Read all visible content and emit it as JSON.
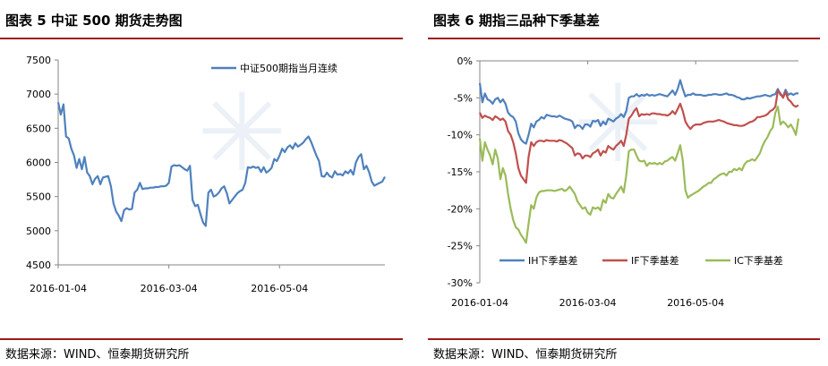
{
  "left": {
    "title": "图表 5 中证 500 期货走势图",
    "source": "数据来源：WIND、恒泰期货研究所"
  },
  "right": {
    "title": "图表 6 期指三品种下季基差",
    "source": "数据来源：WIND、恒泰期货研究所"
  },
  "colors": {
    "blue": "#4f81bd",
    "red": "#c0504d",
    "green": "#9bbb59",
    "rule": "#9e1b1b",
    "axis": "#868686"
  },
  "chart_data": [
    {
      "type": "line",
      "title": "",
      "ylim": [
        4500,
        7500
      ],
      "yticks": [
        "7500",
        "7000",
        "6500",
        "6000",
        "5500",
        "5000",
        "4500"
      ],
      "ytick_values": [
        7500,
        7000,
        6500,
        6000,
        5500,
        5000,
        4500
      ],
      "xticks": [
        "2016-01-04",
        "2016-03-04",
        "2016-05-04"
      ],
      "xtick_positions": [
        0,
        42,
        84
      ],
      "x_count": 125,
      "legend": "top-right",
      "series": [
        {
          "name": "中证500期指当月连续",
          "color": "#4f81bd",
          "values": [
            6880,
            6700,
            6850,
            6380,
            6350,
            6200,
            6100,
            5920,
            6050,
            5900,
            6080,
            5850,
            5800,
            5680,
            5760,
            5800,
            5680,
            5780,
            5790,
            5800,
            5650,
            5400,
            5280,
            5220,
            5140,
            5300,
            5330,
            5310,
            5320,
            5560,
            5600,
            5700,
            5610,
            5620,
            5620,
            5630,
            5630,
            5640,
            5640,
            5650,
            5650,
            5660,
            5700,
            5940,
            5960,
            5950,
            5960,
            5930,
            5900,
            5880,
            5950,
            5450,
            5360,
            5380,
            5240,
            5120,
            5070,
            5560,
            5600,
            5500,
            5520,
            5560,
            5620,
            5650,
            5550,
            5400,
            5450,
            5500,
            5550,
            5580,
            5600,
            5700,
            5930,
            5920,
            5940,
            5920,
            5930,
            5860,
            5930,
            5850,
            5880,
            5920,
            6050,
            6020,
            6100,
            6200,
            6150,
            6220,
            6250,
            6200,
            6280,
            6230,
            6260,
            6290,
            6340,
            6380,
            6300,
            6200,
            6100,
            6020,
            5800,
            5790,
            5850,
            5800,
            5780,
            5870,
            5820,
            5830,
            5810,
            5870,
            5840,
            5890,
            5820,
            6000,
            6080,
            6120,
            5900,
            5950,
            5860,
            5720,
            5660,
            5680,
            5700,
            5720,
            5790
          ]
        }
      ]
    },
    {
      "type": "line",
      "title": "",
      "ylim": [
        -30,
        0
      ],
      "yticks": [
        "0%",
        "-5%",
        "-10%",
        "-15%",
        "-20%",
        "-25%",
        "-30%"
      ],
      "ytick_values": [
        0,
        -5,
        -10,
        -15,
        -20,
        -25,
        -30
      ],
      "xticks": [
        "2016-01-04",
        "2016-03-04",
        "2016-05-04"
      ],
      "xtick_positions": [
        0,
        42,
        84
      ],
      "x_count": 125,
      "legend": "bottom",
      "series": [
        {
          "name": "IH下季基差",
          "color": "#4f81bd",
          "values": [
            -3,
            -5.6,
            -4.4,
            -5.2,
            -5.4,
            -5.8,
            -5.2,
            -5.0,
            -5.6,
            -5.2,
            -5.8,
            -7.0,
            -7.4,
            -7.6,
            -8.2,
            -9.8,
            -10.6,
            -11.0,
            -11.2,
            -10.0,
            -8.5,
            -9.0,
            -8.2,
            -8.0,
            -7.6,
            -7.8,
            -7.3,
            -7.4,
            -7.5,
            -7.5,
            -7.6,
            -7.4,
            -7.6,
            -7.8,
            -7.9,
            -8.0,
            -8.2,
            -9.1,
            -8.7,
            -8.8,
            -9.2,
            -8.6,
            -8.6,
            -8.9,
            -8.1,
            -8.2,
            -8.0,
            -8.8,
            -8.2,
            -8.6,
            -7.8,
            -8.0,
            -8.2,
            -7.8,
            -7.6,
            -7.2,
            -7.6,
            -6.8,
            -5.0,
            -4.8,
            -4.8,
            -4.5,
            -4.8,
            -4.6,
            -4.7,
            -4.5,
            -4.7,
            -4.6,
            -4.7,
            -4.6,
            -4.5,
            -4.6,
            -4.7,
            -4.8,
            -4.4,
            -4.0,
            -4.6,
            -3.8,
            -2.6,
            -3.8,
            -4.8,
            -4.6,
            -4.6,
            -4.4,
            -4.6,
            -4.6,
            -4.6,
            -4.7,
            -4.7,
            -4.6,
            -4.6,
            -4.5,
            -4.5,
            -4.6,
            -4.6,
            -4.5,
            -4.4,
            -4.6,
            -4.6,
            -4.7,
            -4.9,
            -5.0,
            -5.2,
            -5.2,
            -5.0,
            -5.1,
            -5.0,
            -4.9,
            -4.8,
            -4.8,
            -4.7,
            -4.6,
            -4.7,
            -4.8,
            -4.6,
            -4.5,
            -3.8,
            -4.6,
            -4.8,
            -3.9,
            -4.6,
            -4.4,
            -4.6,
            -4.4,
            -4.4
          ]
        },
        {
          "name": "IF下季基差",
          "color": "#c0504d",
          "values": [
            -7,
            -7.7,
            -7.4,
            -7.6,
            -7.7,
            -8.0,
            -7.5,
            -7.7,
            -8.0,
            -7.8,
            -8.2,
            -9.5,
            -10.0,
            -11.0,
            -12.5,
            -14.5,
            -15.5,
            -16.0,
            -16.5,
            -13.0,
            -11.0,
            -11.5,
            -11.0,
            -10.8,
            -10.8,
            -10.9,
            -10.7,
            -10.8,
            -10.8,
            -10.8,
            -10.9,
            -10.7,
            -10.8,
            -11.0,
            -11.2,
            -11.5,
            -11.8,
            -12.8,
            -12.5,
            -12.6,
            -13.2,
            -12.8,
            -12.8,
            -13.0,
            -12.5,
            -12.3,
            -12.0,
            -12.8,
            -12.2,
            -12.4,
            -11.5,
            -11.8,
            -12.0,
            -11.5,
            -11.2,
            -10.8,
            -11.5,
            -10.0,
            -7.8,
            -7.4,
            -6.8,
            -6.4,
            -7.5,
            -7.2,
            -7.3,
            -7.2,
            -7.3,
            -7.1,
            -7.1,
            -7.2,
            -7.2,
            -7.3,
            -7.3,
            -7.4,
            -7.2,
            -6.8,
            -7.2,
            -6.5,
            -5.8,
            -6.8,
            -8.2,
            -8.8,
            -9.2,
            -8.8,
            -8.6,
            -8.6,
            -8.6,
            -8.4,
            -8.3,
            -8.2,
            -8.2,
            -8.2,
            -8.1,
            -8.0,
            -8.1,
            -8.2,
            -8.4,
            -8.5,
            -8.6,
            -8.7,
            -8.7,
            -8.8,
            -8.8,
            -8.7,
            -8.5,
            -8.3,
            -8.2,
            -8.0,
            -7.6,
            -7.6,
            -7.5,
            -7.4,
            -7.2,
            -6.8,
            -6.6,
            -6.2,
            -4.0,
            -4.4,
            -5.0,
            -4.2,
            -5.2,
            -5.5,
            -6.0,
            -6.2,
            -6.0
          ]
        },
        {
          "name": "IC下季基差",
          "color": "#9bbb59",
          "values": [
            -10.5,
            -13.5,
            -11.0,
            -12.0,
            -12.8,
            -14.0,
            -12.0,
            -13.2,
            -16.0,
            -14.5,
            -15.5,
            -18.0,
            -20.0,
            -21.5,
            -22.5,
            -22.8,
            -23.5,
            -24.0,
            -24.6,
            -22.0,
            -19.5,
            -20.0,
            -18.5,
            -17.8,
            -17.6,
            -17.6,
            -17.5,
            -17.5,
            -17.5,
            -17.6,
            -17.5,
            -17.4,
            -17.3,
            -17.6,
            -17.4,
            -17.0,
            -17.5,
            -18.0,
            -19.0,
            -19.5,
            -20.0,
            -19.8,
            -20.5,
            -20.8,
            -19.8,
            -20.0,
            -19.8,
            -20.2,
            -18.8,
            -19.2,
            -18.0,
            -18.5,
            -18.6,
            -18.0,
            -17.5,
            -17.0,
            -17.8,
            -15.5,
            -12.2,
            -12.0,
            -12.0,
            -12.8,
            -13.5,
            -13.6,
            -13.5,
            -14.2,
            -13.8,
            -13.9,
            -13.8,
            -14.0,
            -13.8,
            -14.0,
            -13.6,
            -13.5,
            -13.2,
            -13.0,
            -13.5,
            -12.5,
            -11.4,
            -13.5,
            -17.5,
            -18.5,
            -18.2,
            -18.0,
            -17.8,
            -17.6,
            -17.3,
            -17.0,
            -16.8,
            -16.5,
            -16.5,
            -16.0,
            -15.8,
            -15.5,
            -15.3,
            -15.2,
            -15.5,
            -15.0,
            -15.0,
            -14.6,
            -14.8,
            -14.5,
            -14.8,
            -14.0,
            -13.6,
            -13.5,
            -13.3,
            -13.5,
            -13.0,
            -12.5,
            -11.5,
            -10.8,
            -10.3,
            -9.5,
            -9.0,
            -7.0,
            -6.2,
            -8.6,
            -8.2,
            -8.5,
            -9.0,
            -8.6,
            -9.2,
            -10.0,
            -7.8
          ]
        }
      ]
    }
  ]
}
